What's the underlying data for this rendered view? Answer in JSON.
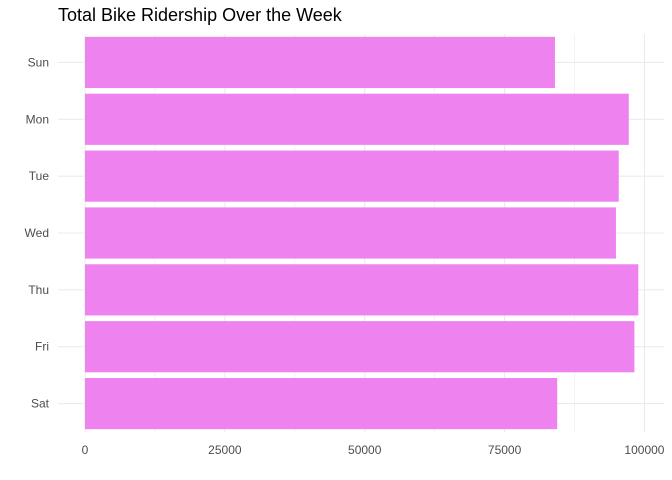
{
  "chart_data": {
    "type": "bar",
    "orientation": "horizontal",
    "title": "Total Bike Ridership Over the Week",
    "xlabel": "",
    "ylabel": "",
    "categories": [
      "Sun",
      "Mon",
      "Tue",
      "Wed",
      "Thu",
      "Fri",
      "Sat"
    ],
    "values": [
      84000,
      97200,
      95400,
      94900,
      98900,
      98200,
      84400
    ],
    "xlim": [
      0,
      104000
    ],
    "x_ticks": [
      0,
      25000,
      50000,
      75000,
      100000
    ],
    "x_tick_labels": [
      "0",
      "25000",
      "50000",
      "75000",
      "100000"
    ],
    "bar_color": "#EE82EE",
    "grid": true,
    "grid_color": "#EBEBEB",
    "legend": "none"
  }
}
